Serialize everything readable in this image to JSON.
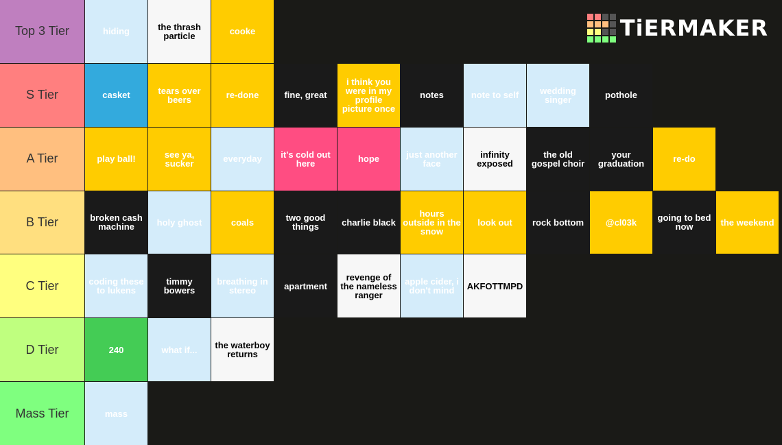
{
  "logo": "TiERMAKER",
  "tiers": [
    {
      "label": "Top 3 Tier",
      "color": "#bf7fbf",
      "items": [
        {
          "text": "hiding",
          "color": "#d4ecfa"
        },
        {
          "text": "the thrash particle",
          "color": "#f7f7f7"
        },
        {
          "text": "cooke",
          "color": "#ffcc00"
        }
      ]
    },
    {
      "label": "S Tier",
      "color": "#ff7f7f",
      "items": [
        {
          "text": "casket",
          "color": "#33aadd"
        },
        {
          "text": "tears over beers",
          "color": "#ffcc00"
        },
        {
          "text": "re-done",
          "color": "#ffcc00"
        },
        {
          "text": "fine, great",
          "color": "#1a1a1a"
        },
        {
          "text": "i think you were in my profile picture once",
          "color": "#ffcc00"
        },
        {
          "text": "notes",
          "color": "#1a1a1a"
        },
        {
          "text": "note to self",
          "color": "#d4ecfa"
        },
        {
          "text": "wedding singer",
          "color": "#d4ecfa"
        },
        {
          "text": "pothole",
          "color": "#1a1a1a"
        }
      ]
    },
    {
      "label": "A Tier",
      "color": "#ffbf7f",
      "items": [
        {
          "text": "play ball!",
          "color": "#ffcc00"
        },
        {
          "text": "see ya, sucker",
          "color": "#ffcc00"
        },
        {
          "text": "everyday",
          "color": "#d4ecfa"
        },
        {
          "text": "it's cold out here",
          "color": "#ff4d82"
        },
        {
          "text": "hope",
          "color": "#ff4d82"
        },
        {
          "text": "just another face",
          "color": "#d4ecfa"
        },
        {
          "text": "infinity exposed",
          "color": "#f7f7f7"
        },
        {
          "text": "the old gospel choir",
          "color": "#1a1a1a"
        },
        {
          "text": "your graduation",
          "color": "#1a1a1a"
        },
        {
          "text": "re-do",
          "color": "#ffcc00"
        }
      ]
    },
    {
      "label": "B Tier",
      "color": "#ffdf7f",
      "items": [
        {
          "text": "broken cash machine",
          "color": "#1a1a1a"
        },
        {
          "text": "holy ghost",
          "color": "#d4ecfa"
        },
        {
          "text": "coals",
          "color": "#ffcc00"
        },
        {
          "text": "two good things",
          "color": "#1a1a1a"
        },
        {
          "text": "charlie black",
          "color": "#1a1a1a"
        },
        {
          "text": "hours outside in the snow",
          "color": "#ffcc00"
        },
        {
          "text": "look out",
          "color": "#ffcc00"
        },
        {
          "text": "rock bottom",
          "color": "#1a1a1a"
        },
        {
          "text": "@cl03k",
          "color": "#ffcc00"
        },
        {
          "text": "going to bed now",
          "color": "#1a1a1a"
        },
        {
          "text": "the weekend",
          "color": "#ffcc00"
        }
      ]
    },
    {
      "label": "C Tier",
      "color": "#ffff7f",
      "items": [
        {
          "text": "coding these to lukens",
          "color": "#d4ecfa"
        },
        {
          "text": "timmy bowers",
          "color": "#1a1a1a"
        },
        {
          "text": "breathing in stereo",
          "color": "#d4ecfa"
        },
        {
          "text": "apartment",
          "color": "#1a1a1a"
        },
        {
          "text": "revenge of the nameless ranger",
          "color": "#f7f7f7"
        },
        {
          "text": "apple cider, i don't mind",
          "color": "#d4ecfa"
        },
        {
          "text": "AKFOTTMPD",
          "color": "#f7f7f7"
        }
      ]
    },
    {
      "label": "D Tier",
      "color": "#bfff7f",
      "items": [
        {
          "text": "240",
          "color": "#44cc55"
        },
        {
          "text": "what if...",
          "color": "#d4ecfa"
        },
        {
          "text": "the waterboy returns",
          "color": "#f7f7f7"
        }
      ]
    },
    {
      "label": "Mass Tier",
      "color": "#7fff7f",
      "items": [
        {
          "text": "mass",
          "color": "#d4ecfa"
        }
      ]
    }
  ]
}
